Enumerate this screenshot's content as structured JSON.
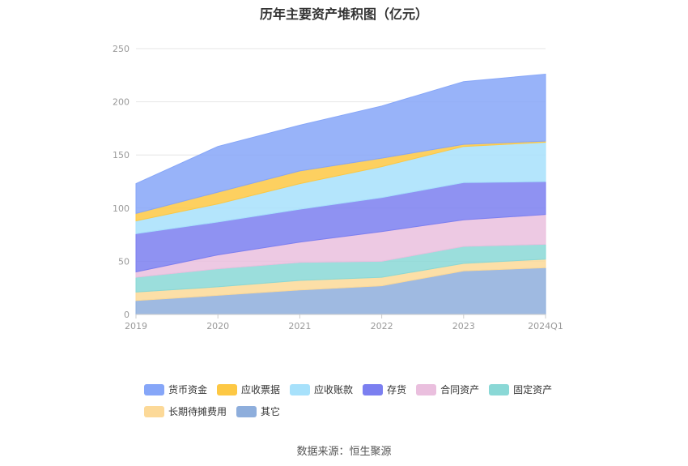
{
  "chart_data": {
    "type": "area",
    "stacked": true,
    "title": "历年主要资产堆积图（亿元）",
    "categories": [
      "2019",
      "2020",
      "2021",
      "2022",
      "2023",
      "2024Q1"
    ],
    "ylim": [
      0,
      250
    ],
    "yticks": [
      0,
      50,
      100,
      150,
      200,
      250
    ],
    "grid": true,
    "legend_position": "bottom",
    "series": [
      {
        "name": "其它",
        "color": "#8eaedc",
        "values": [
          13,
          18,
          23,
          27,
          41,
          44
        ]
      },
      {
        "name": "长期待摊费用",
        "color": "#fcd998",
        "values": [
          8,
          8,
          9,
          8,
          7,
          8
        ]
      },
      {
        "name": "固定资产",
        "color": "#8ad8d6",
        "values": [
          14,
          17,
          17,
          15,
          16,
          14
        ]
      },
      {
        "name": "合同资产",
        "color": "#eabfde",
        "values": [
          5,
          13,
          19,
          28,
          25,
          28
        ]
      },
      {
        "name": "存货",
        "color": "#7b7ff0",
        "values": [
          36,
          31,
          31,
          32,
          35,
          31
        ]
      },
      {
        "name": "应收账款",
        "color": "#a7e1fb",
        "values": [
          12,
          17,
          24,
          29,
          34,
          37
        ]
      },
      {
        "name": "应收票据",
        "color": "#fdc844",
        "values": [
          7,
          11,
          12,
          8,
          2,
          1
        ]
      },
      {
        "name": "货币资金",
        "color": "#86a6f8",
        "values": [
          28,
          43,
          43,
          49,
          59,
          63
        ]
      }
    ],
    "legend_order": [
      "货币资金",
      "应收票据",
      "应收账款",
      "存货",
      "合同资产",
      "固定资产",
      "长期待摊费用",
      "其它"
    ]
  },
  "source_text": "数据来源：恒生聚源"
}
